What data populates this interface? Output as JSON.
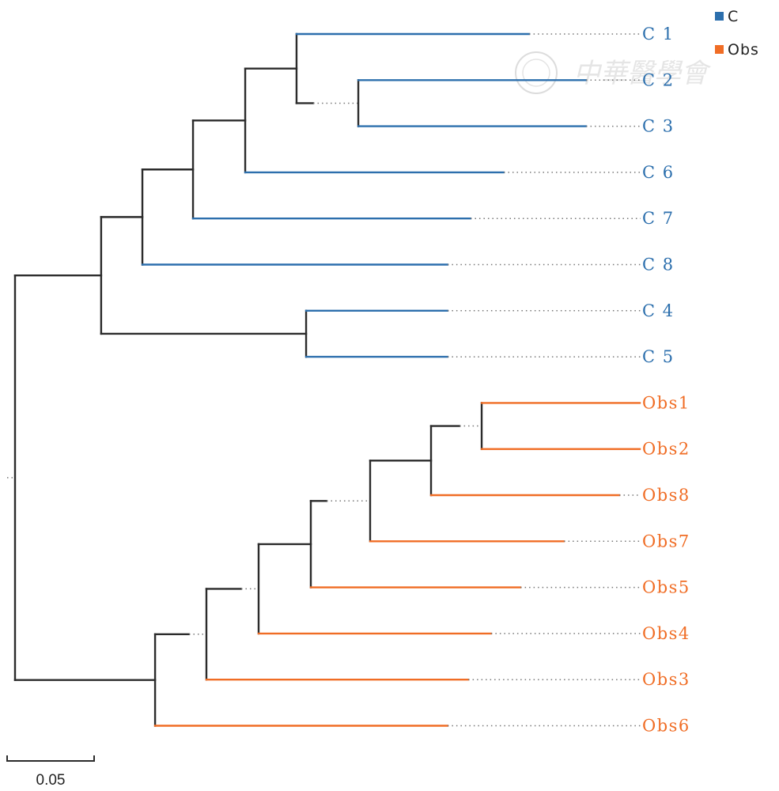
{
  "chart_data": {
    "type": "tree",
    "title": "",
    "layout": "rectangular phylogram, tips right-aligned with dotted leaders",
    "scale_bar": {
      "value": 0.05,
      "label": "0.05"
    },
    "legend": {
      "placement": "top-right",
      "items": [
        {
          "label": "C",
          "color": "#2c6fad"
        },
        {
          "label": "Obs",
          "color": "#f06d25"
        }
      ]
    },
    "colors": {
      "internal": "#2b2b2b",
      "leader": "#777777",
      "C": "#2c6fad",
      "Obs": "#f06d25"
    },
    "tips": [
      "C1",
      "C2",
      "C3",
      "C6",
      "C7",
      "C8",
      "C4",
      "C5",
      "Obs1",
      "Obs2",
      "Obs8",
      "Obs7",
      "Obs5",
      "Obs4",
      "Obs3",
      "Obs6"
    ],
    "nodes": [
      {
        "id": "root",
        "depth": 0.0,
        "children": [
          "nC",
          "nO"
        ],
        "stem_solid": 0.0
      },
      {
        "id": "nC",
        "depth": 0.0495,
        "children": [
          "nC1",
          "nC45"
        ],
        "solid_to": 0.0495
      },
      {
        "id": "nC1",
        "depth": 0.0732,
        "children": [
          "nC2",
          "C8"
        ],
        "solid_to": 0.0732
      },
      {
        "id": "nC2",
        "depth": 0.1023,
        "children": [
          "nC3",
          "C7"
        ],
        "solid_to": 0.1141
      },
      {
        "id": "nC3",
        "depth": 0.1323,
        "children": [
          "nC4",
          "C6"
        ],
        "solid_to": 0.1523
      },
      {
        "id": "nC4",
        "depth": 0.1618,
        "children": [
          "C1",
          "nC5"
        ],
        "solid_to": 0.1618
      },
      {
        "id": "nC5",
        "depth": 0.1973,
        "children": [
          "C2",
          "C3"
        ],
        "solid_to": 0.1714
      },
      {
        "id": "nC45",
        "depth": 0.1673,
        "children": [
          "C4",
          "C5"
        ],
        "solid_to": 0.1673
      },
      {
        "id": "nO",
        "depth": 0.0805,
        "children": [
          "nO1",
          "Obs6"
        ],
        "solid_to": 0.0805
      },
      {
        "id": "nO1",
        "depth": 0.11,
        "children": [
          "nO2",
          "Obs3"
        ],
        "solid_to": 0.1
      },
      {
        "id": "nO2",
        "depth": 0.14,
        "children": [
          "nO3",
          "Obs4"
        ],
        "solid_to": 0.13
      },
      {
        "id": "nO3",
        "depth": 0.17,
        "children": [
          "nO4",
          "Obs5"
        ],
        "solid_to": 0.1773
      },
      {
        "id": "nO4",
        "depth": 0.2041,
        "children": [
          "nO5",
          "Obs7"
        ],
        "solid_to": 0.1791
      },
      {
        "id": "nO5",
        "depth": 0.2391,
        "children": [
          "nO6",
          "Obs8"
        ],
        "solid_to": 0.2491
      },
      {
        "id": "nO6",
        "depth": 0.2682,
        "children": [
          "Obs1",
          "Obs2"
        ],
        "solid_to": 0.2555
      }
    ],
    "tip_branch_ends": {
      "C1": 0.2955,
      "C2": 0.3282,
      "C3": 0.3282,
      "C6": 0.2809,
      "C7": 0.2618,
      "C8": 0.2486,
      "C4": 0.2486,
      "C5": 0.2486,
      "Obs1": 0.3591,
      "Obs2": 0.3591,
      "Obs8": 0.3473,
      "Obs7": 0.3155,
      "Obs5": 0.2905,
      "Obs4": 0.2736,
      "Obs3": 0.2605,
      "Obs6": 0.2486
    },
    "tip_group": {
      "C1": "C",
      "C2": "C",
      "C3": "C",
      "C6": "C",
      "C7": "C",
      "C8": "C",
      "C4": "C",
      "C5": "C",
      "Obs1": "Obs",
      "Obs2": "Obs",
      "Obs8": "Obs",
      "Obs7": "Obs",
      "Obs5": "Obs",
      "Obs4": "Obs",
      "Obs3": "Obs",
      "Obs6": "Obs"
    },
    "tip_display": {
      "C1": "C 1",
      "C2": "C 2",
      "C3": "C 3",
      "C6": "C 6",
      "C7": "C 7",
      "C8": "C 8",
      "C4": "C 4",
      "C5": "C 5",
      "Obs1": "Obs1",
      "Obs2": "Obs2",
      "Obs8": "Obs8",
      "Obs7": "Obs7",
      "Obs5": "Obs5",
      "Obs4": "Obs4",
      "Obs3": "Obs3",
      "Obs6": "Obs6"
    }
  },
  "watermark": {
    "text": "中華醫學會"
  }
}
